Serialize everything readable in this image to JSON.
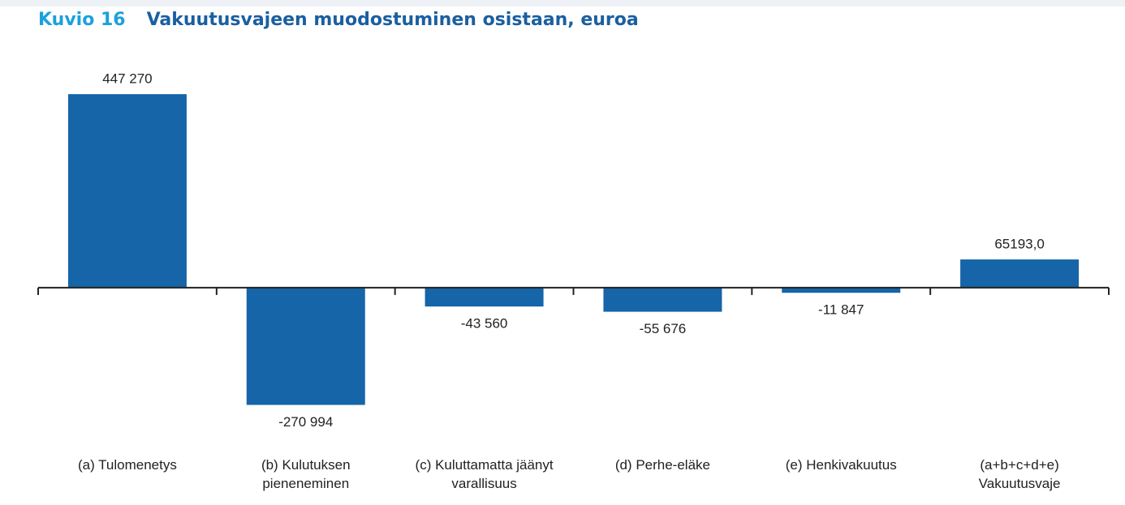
{
  "chart_data": {
    "type": "bar",
    "figure_label": "Kuvio 16",
    "title": "Vakuutusvajeen muodostuminen osistaan, euroa",
    "categories": [
      "(a) Tulomenetys",
      "(b) Kulutuksen\npieneneminen",
      "(c) Kuluttamatta jäänyt\nvarallisuus",
      "(d) Perhe-eläke",
      "(e) Henkivakuutus",
      "(a+b+c+d+e)\nVakuutusvaje"
    ],
    "values": [
      447270,
      -270994,
      -43560,
      -55676,
      -11847,
      65193
    ],
    "value_labels": [
      "447 270",
      "-270 994",
      "-43 560",
      "-55 676",
      "-11 847",
      "65193,0"
    ],
    "color": "#1565a8",
    "ylim": [
      -300000,
      500000
    ]
  }
}
